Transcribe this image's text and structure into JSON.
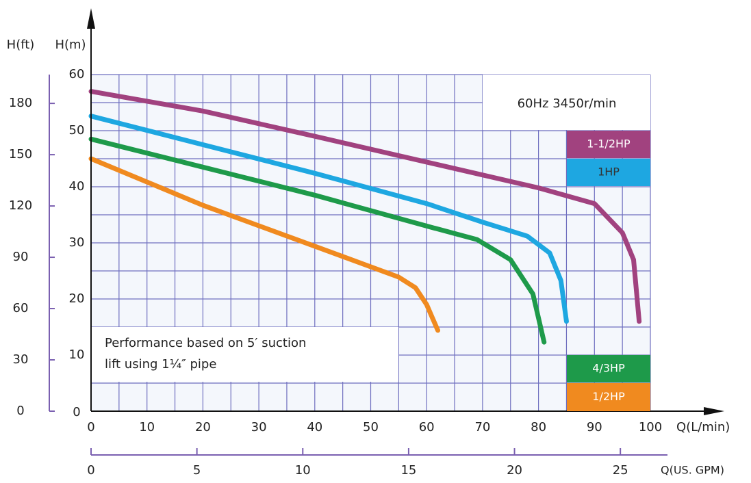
{
  "chart_data": {
    "type": "line",
    "x_label": "Q(L/min)",
    "y_label": "H(m)",
    "y2_label": "H(ft)",
    "x2_label": "Q(US. GPM)",
    "xlim": [
      0,
      100
    ],
    "xticks": [
      0,
      10,
      20,
      30,
      40,
      50,
      60,
      70,
      80,
      90,
      100
    ],
    "ylim": [
      0,
      60
    ],
    "yticks": [
      0,
      10,
      20,
      30,
      40,
      50,
      60
    ],
    "y2lim": [
      0,
      196.85
    ],
    "y2ticks": [
      0,
      30,
      60,
      90,
      120,
      150,
      180
    ],
    "x2lim": [
      0,
      26.417
    ],
    "x2ticks": [
      0,
      5,
      10,
      15,
      20,
      25
    ],
    "grid": true,
    "annotations": [
      "60Hz 3450r/min",
      "Performance based on 5′  suction",
      "lift using  1¼″  pipe"
    ],
    "series": [
      {
        "name": "1-1/2HP",
        "color": "#a1427f",
        "x": [
          0,
          20,
          40,
          60,
          80,
          90,
          95,
          97,
          98
        ],
        "values": [
          57,
          53.5,
          49,
          44.4,
          39.8,
          37,
          31.8,
          27,
          16
        ]
      },
      {
        "name": "1HP",
        "color": "#1ea7e1",
        "x": [
          0,
          20,
          40,
          60,
          70,
          78,
          82,
          84,
          85
        ],
        "values": [
          52.6,
          47.5,
          42.4,
          37,
          33.7,
          31.2,
          28.2,
          23.3,
          16
        ]
      },
      {
        "name": "4/3HP",
        "color": "#1e9a4a",
        "x": [
          0,
          20,
          40,
          60,
          69,
          75,
          79,
          81
        ],
        "values": [
          48.5,
          43.5,
          38.5,
          33,
          30.6,
          27,
          20.9,
          12.3
        ]
      },
      {
        "name": "1/2HP",
        "color": "#f08a1f",
        "x": [
          0,
          20,
          40,
          55,
          58,
          60,
          62
        ],
        "values": [
          45,
          36.7,
          29.4,
          23.9,
          22,
          19,
          14.4
        ]
      }
    ]
  }
}
